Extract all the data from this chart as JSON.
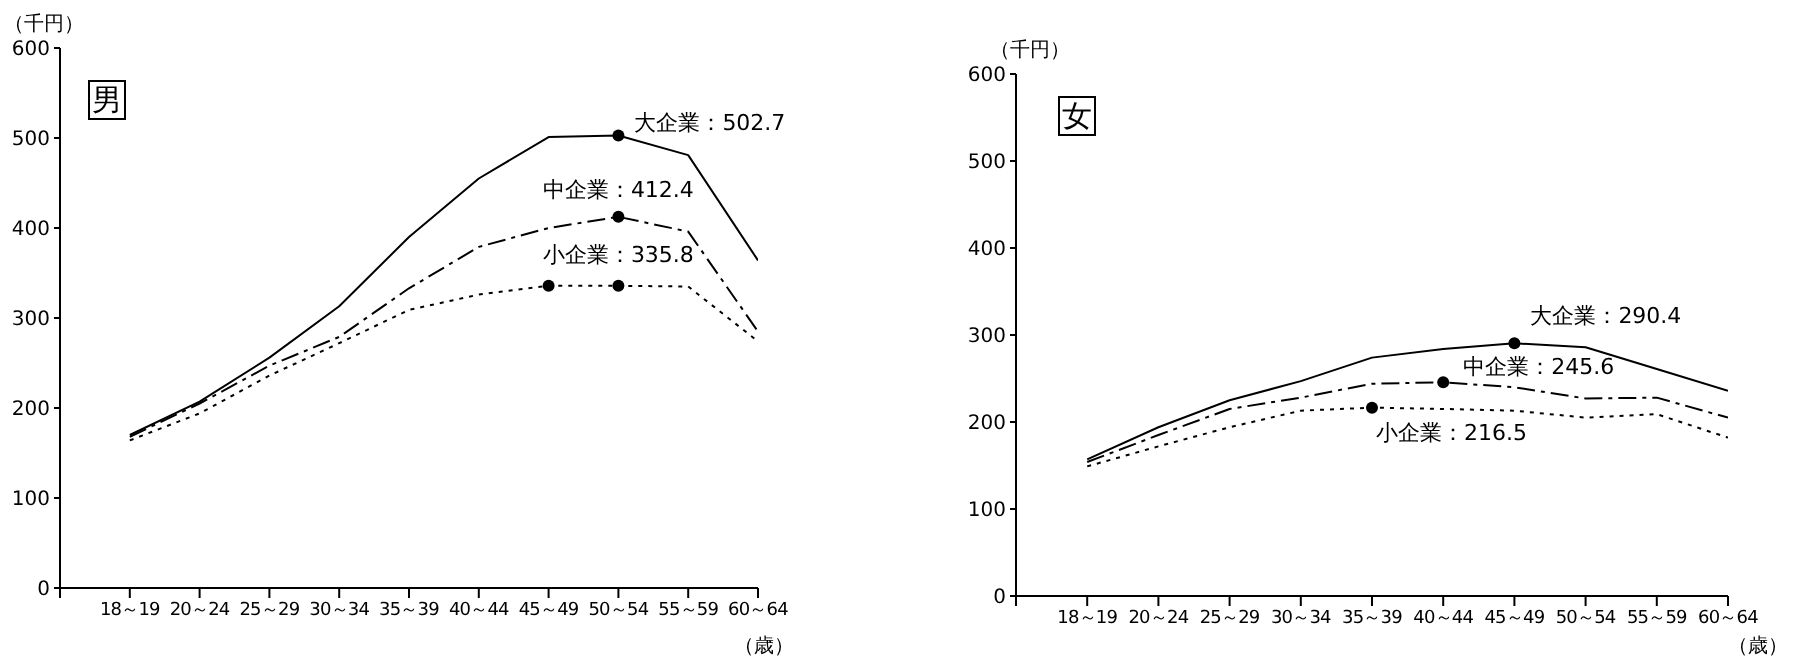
{
  "chart_data": [
    {
      "type": "line",
      "ylabel": "（千円）",
      "xlabel": "（歳）",
      "categories": [
        "18～19",
        "20～24",
        "25～29",
        "30～34",
        "35～39",
        "40～44",
        "45～49",
        "50～54",
        "55～59",
        "60～64"
      ],
      "ylim": [
        0,
        600
      ],
      "yticks": [
        0,
        100,
        200,
        300,
        400,
        500,
        600
      ],
      "grid": false,
      "series": [
        {
          "color": "#000000",
          "line_style": "solid",
          "values": [
            170,
            207,
            256,
            313,
            390,
            455,
            501,
            502.7,
            481,
            364
          ]
        },
        {
          "color": "#000000",
          "line_style": "dashed",
          "values": [
            168,
            205,
            247,
            279,
            333,
            379,
            400,
            412.4,
            396,
            285
          ]
        },
        {
          "color": "#000000",
          "line_style": "dotted",
          "values": [
            164,
            194,
            236,
            272,
            309,
            326,
            335.8,
            335.8,
            335,
            274
          ]
        },
        {
          "type": "scatter",
          "color": "#000000",
          "marker": "circle",
          "x": [
            "50～54",
            "50～54",
            "45～49",
            "50～54"
          ],
          "values": [
            502.7,
            412.4,
            335.8,
            335.8
          ]
        }
      ],
      "annotations": [
        "男",
        {
          "text": "大企業：502.7",
          "x": "50～54",
          "y": 502.7
        },
        {
          "text": "中企業：412.4",
          "x": "50～54",
          "y": 412.4
        },
        {
          "text": "小企業：335.8",
          "x": "50～54",
          "y": 335.8
        }
      ]
    },
    {
      "type": "line",
      "ylabel": "（千円）",
      "xlabel": "（歳）",
      "categories": [
        "18～19",
        "20～24",
        "25～29",
        "30～34",
        "35～39",
        "40～44",
        "45～49",
        "50～54",
        "55～59",
        "60～64"
      ],
      "ylim": [
        0,
        600
      ],
      "yticks": [
        0,
        100,
        200,
        300,
        400,
        500,
        600
      ],
      "grid": false,
      "series": [
        {
          "color": "#000000",
          "line_style": "solid",
          "values": [
            157,
            194,
            225,
            247,
            274,
            284,
            290.4,
            286,
            261,
            236
          ]
        },
        {
          "color": "#000000",
          "line_style": "dashed",
          "values": [
            154,
            185,
            215,
            228,
            244,
            245.6,
            240,
            227,
            228,
            205
          ]
        },
        {
          "color": "#000000",
          "line_style": "dotted",
          "values": [
            149,
            172,
            194,
            213,
            216.5,
            215,
            213,
            205,
            209,
            182
          ]
        },
        {
          "type": "scatter",
          "color": "#000000",
          "marker": "circle",
          "x": [
            "45～49",
            "40～44",
            "35～39"
          ],
          "values": [
            290.4,
            245.6,
            216.5
          ]
        }
      ],
      "annotations": [
        "女",
        {
          "text": "大企業：290.4",
          "x": "45～49",
          "y": 290.4
        },
        {
          "text": "中企業：245.6",
          "x": "40～44",
          "y": 245.6
        },
        {
          "text": "小企業：216.5",
          "x": "35～39",
          "y": 216.5
        }
      ]
    }
  ]
}
